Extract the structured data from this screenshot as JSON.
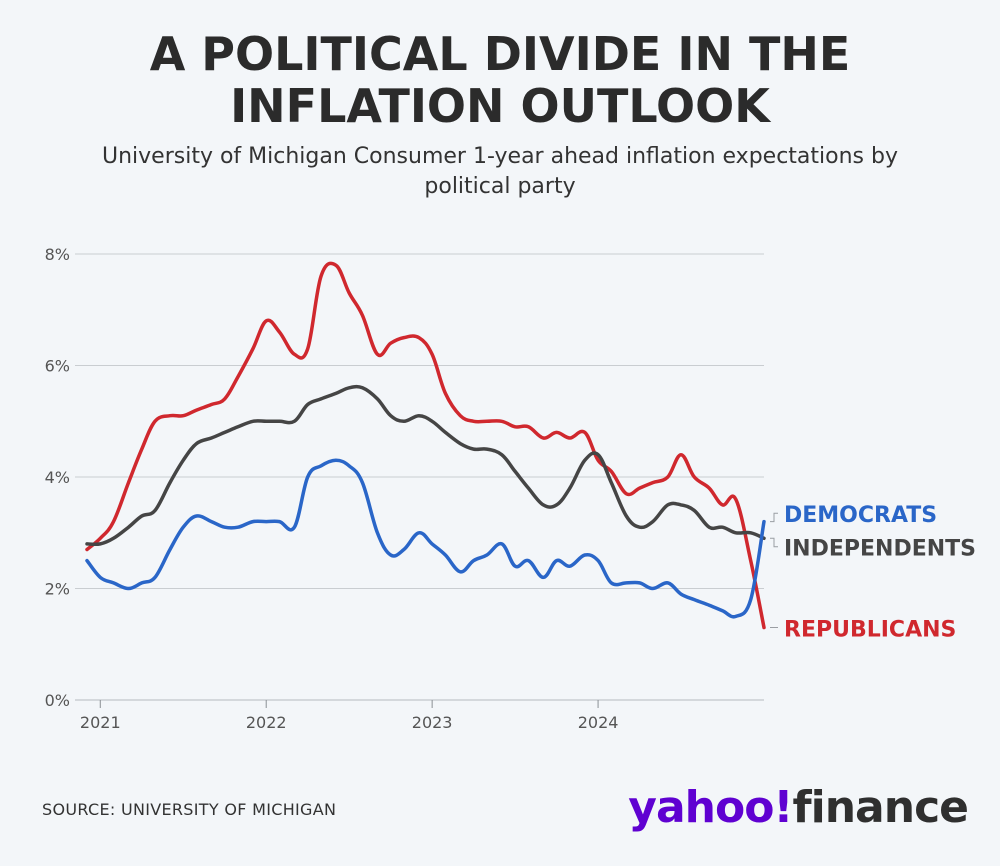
{
  "title": "A POLITICAL DIVIDE IN THE INFLATION OUTLOOK",
  "subtitle": "University of Michigan Consumer 1-year ahead inflation expectations by political party",
  "source": "SOURCE: UNIVERSITY OF MICHIGAN",
  "logo": {
    "part1": "yahoo!",
    "part2": "finance"
  },
  "colors": {
    "republicans": "#d0282e",
    "independents": "#454545",
    "democrats": "#2a66c8",
    "grid": "#c9cdd1",
    "axis_text": "#555555"
  },
  "chart_data": {
    "type": "line",
    "title": "A POLITICAL DIVIDE IN THE INFLATION OUTLOOK",
    "xlabel": "",
    "ylabel": "",
    "xlim": [
      2020.92,
      2025.0
    ],
    "ylim": [
      0,
      8
    ],
    "yticks": [
      0,
      2,
      4,
      6,
      8
    ],
    "ytick_labels": [
      "0%",
      "2%",
      "4%",
      "6%",
      "8%"
    ],
    "xticks": [
      2021,
      2022,
      2023,
      2024
    ],
    "xtick_labels": [
      "2021",
      "2022",
      "2023",
      "2024"
    ],
    "grid": true,
    "series": [
      {
        "name": "REPUBLICANS",
        "key": "republicans",
        "x": [
          2020.92,
          2021.0,
          2021.08,
          2021.17,
          2021.25,
          2021.33,
          2021.42,
          2021.5,
          2021.58,
          2021.67,
          2021.75,
          2021.83,
          2021.92,
          2022.0,
          2022.08,
          2022.17,
          2022.25,
          2022.33,
          2022.42,
          2022.5,
          2022.58,
          2022.67,
          2022.75,
          2022.83,
          2022.92,
          2023.0,
          2023.08,
          2023.17,
          2023.25,
          2023.33,
          2023.42,
          2023.5,
          2023.58,
          2023.67,
          2023.75,
          2023.83,
          2023.92,
          2024.0,
          2024.08,
          2024.17,
          2024.25,
          2024.33,
          2024.42,
          2024.5,
          2024.58,
          2024.67,
          2024.75,
          2024.83,
          2024.92,
          2025.0
        ],
        "values": [
          2.7,
          2.9,
          3.2,
          3.9,
          4.5,
          5.0,
          5.1,
          5.1,
          5.2,
          5.3,
          5.4,
          5.8,
          6.3,
          6.8,
          6.6,
          6.2,
          6.3,
          7.6,
          7.8,
          7.3,
          6.9,
          6.2,
          6.4,
          6.5,
          6.5,
          6.2,
          5.5,
          5.1,
          5.0,
          5.0,
          5.0,
          4.9,
          4.9,
          4.7,
          4.8,
          4.7,
          4.8,
          4.3,
          4.1,
          3.7,
          3.8,
          3.9,
          4.0,
          4.4,
          4.0,
          3.8,
          3.5,
          3.6,
          2.5,
          1.3
        ]
      },
      {
        "name": "INDEPENDENTS",
        "key": "independents",
        "x": [
          2020.92,
          2021.0,
          2021.08,
          2021.17,
          2021.25,
          2021.33,
          2021.42,
          2021.5,
          2021.58,
          2021.67,
          2021.75,
          2021.83,
          2021.92,
          2022.0,
          2022.08,
          2022.17,
          2022.25,
          2022.33,
          2022.42,
          2022.5,
          2022.58,
          2022.67,
          2022.75,
          2022.83,
          2022.92,
          2023.0,
          2023.08,
          2023.17,
          2023.25,
          2023.33,
          2023.42,
          2023.5,
          2023.58,
          2023.67,
          2023.75,
          2023.83,
          2023.92,
          2024.0,
          2024.08,
          2024.17,
          2024.25,
          2024.33,
          2024.42,
          2024.5,
          2024.58,
          2024.67,
          2024.75,
          2024.83,
          2024.92,
          2025.0
        ],
        "values": [
          2.8,
          2.8,
          2.9,
          3.1,
          3.3,
          3.4,
          3.9,
          4.3,
          4.6,
          4.7,
          4.8,
          4.9,
          5.0,
          5.0,
          5.0,
          5.0,
          5.3,
          5.4,
          5.5,
          5.6,
          5.6,
          5.4,
          5.1,
          5.0,
          5.1,
          5.0,
          4.8,
          4.6,
          4.5,
          4.5,
          4.4,
          4.1,
          3.8,
          3.5,
          3.5,
          3.8,
          4.3,
          4.4,
          3.9,
          3.3,
          3.1,
          3.2,
          3.5,
          3.5,
          3.4,
          3.1,
          3.1,
          3.0,
          3.0,
          2.9
        ]
      },
      {
        "name": "DEMOCRATS",
        "key": "democrats",
        "x": [
          2020.92,
          2021.0,
          2021.08,
          2021.17,
          2021.25,
          2021.33,
          2021.42,
          2021.5,
          2021.58,
          2021.67,
          2021.75,
          2021.83,
          2021.92,
          2022.0,
          2022.08,
          2022.17,
          2022.25,
          2022.33,
          2022.42,
          2022.5,
          2022.58,
          2022.67,
          2022.75,
          2022.83,
          2022.92,
          2023.0,
          2023.08,
          2023.17,
          2023.25,
          2023.33,
          2023.42,
          2023.5,
          2023.58,
          2023.67,
          2023.75,
          2023.83,
          2023.92,
          2024.0,
          2024.08,
          2024.17,
          2024.25,
          2024.33,
          2024.42,
          2024.5,
          2024.58,
          2024.67,
          2024.75,
          2024.83,
          2024.92,
          2025.0
        ],
        "values": [
          2.5,
          2.2,
          2.1,
          2.0,
          2.1,
          2.2,
          2.7,
          3.1,
          3.3,
          3.2,
          3.1,
          3.1,
          3.2,
          3.2,
          3.2,
          3.1,
          4.0,
          4.2,
          4.3,
          4.2,
          3.9,
          3.0,
          2.6,
          2.7,
          3.0,
          2.8,
          2.6,
          2.3,
          2.5,
          2.6,
          2.8,
          2.4,
          2.5,
          2.2,
          2.5,
          2.4,
          2.6,
          2.5,
          2.1,
          2.1,
          2.1,
          2.0,
          2.1,
          1.9,
          1.8,
          1.7,
          1.6,
          1.5,
          1.8,
          3.2
        ]
      }
    ],
    "end_labels": [
      {
        "key": "democrats",
        "text": "DEMOCRATS",
        "label_y": 3.35
      },
      {
        "key": "independents",
        "text": "INDEPENDENTS",
        "label_y": 2.75
      },
      {
        "key": "republicans",
        "text": "REPUBLICANS",
        "label_y": 1.3
      }
    ]
  }
}
